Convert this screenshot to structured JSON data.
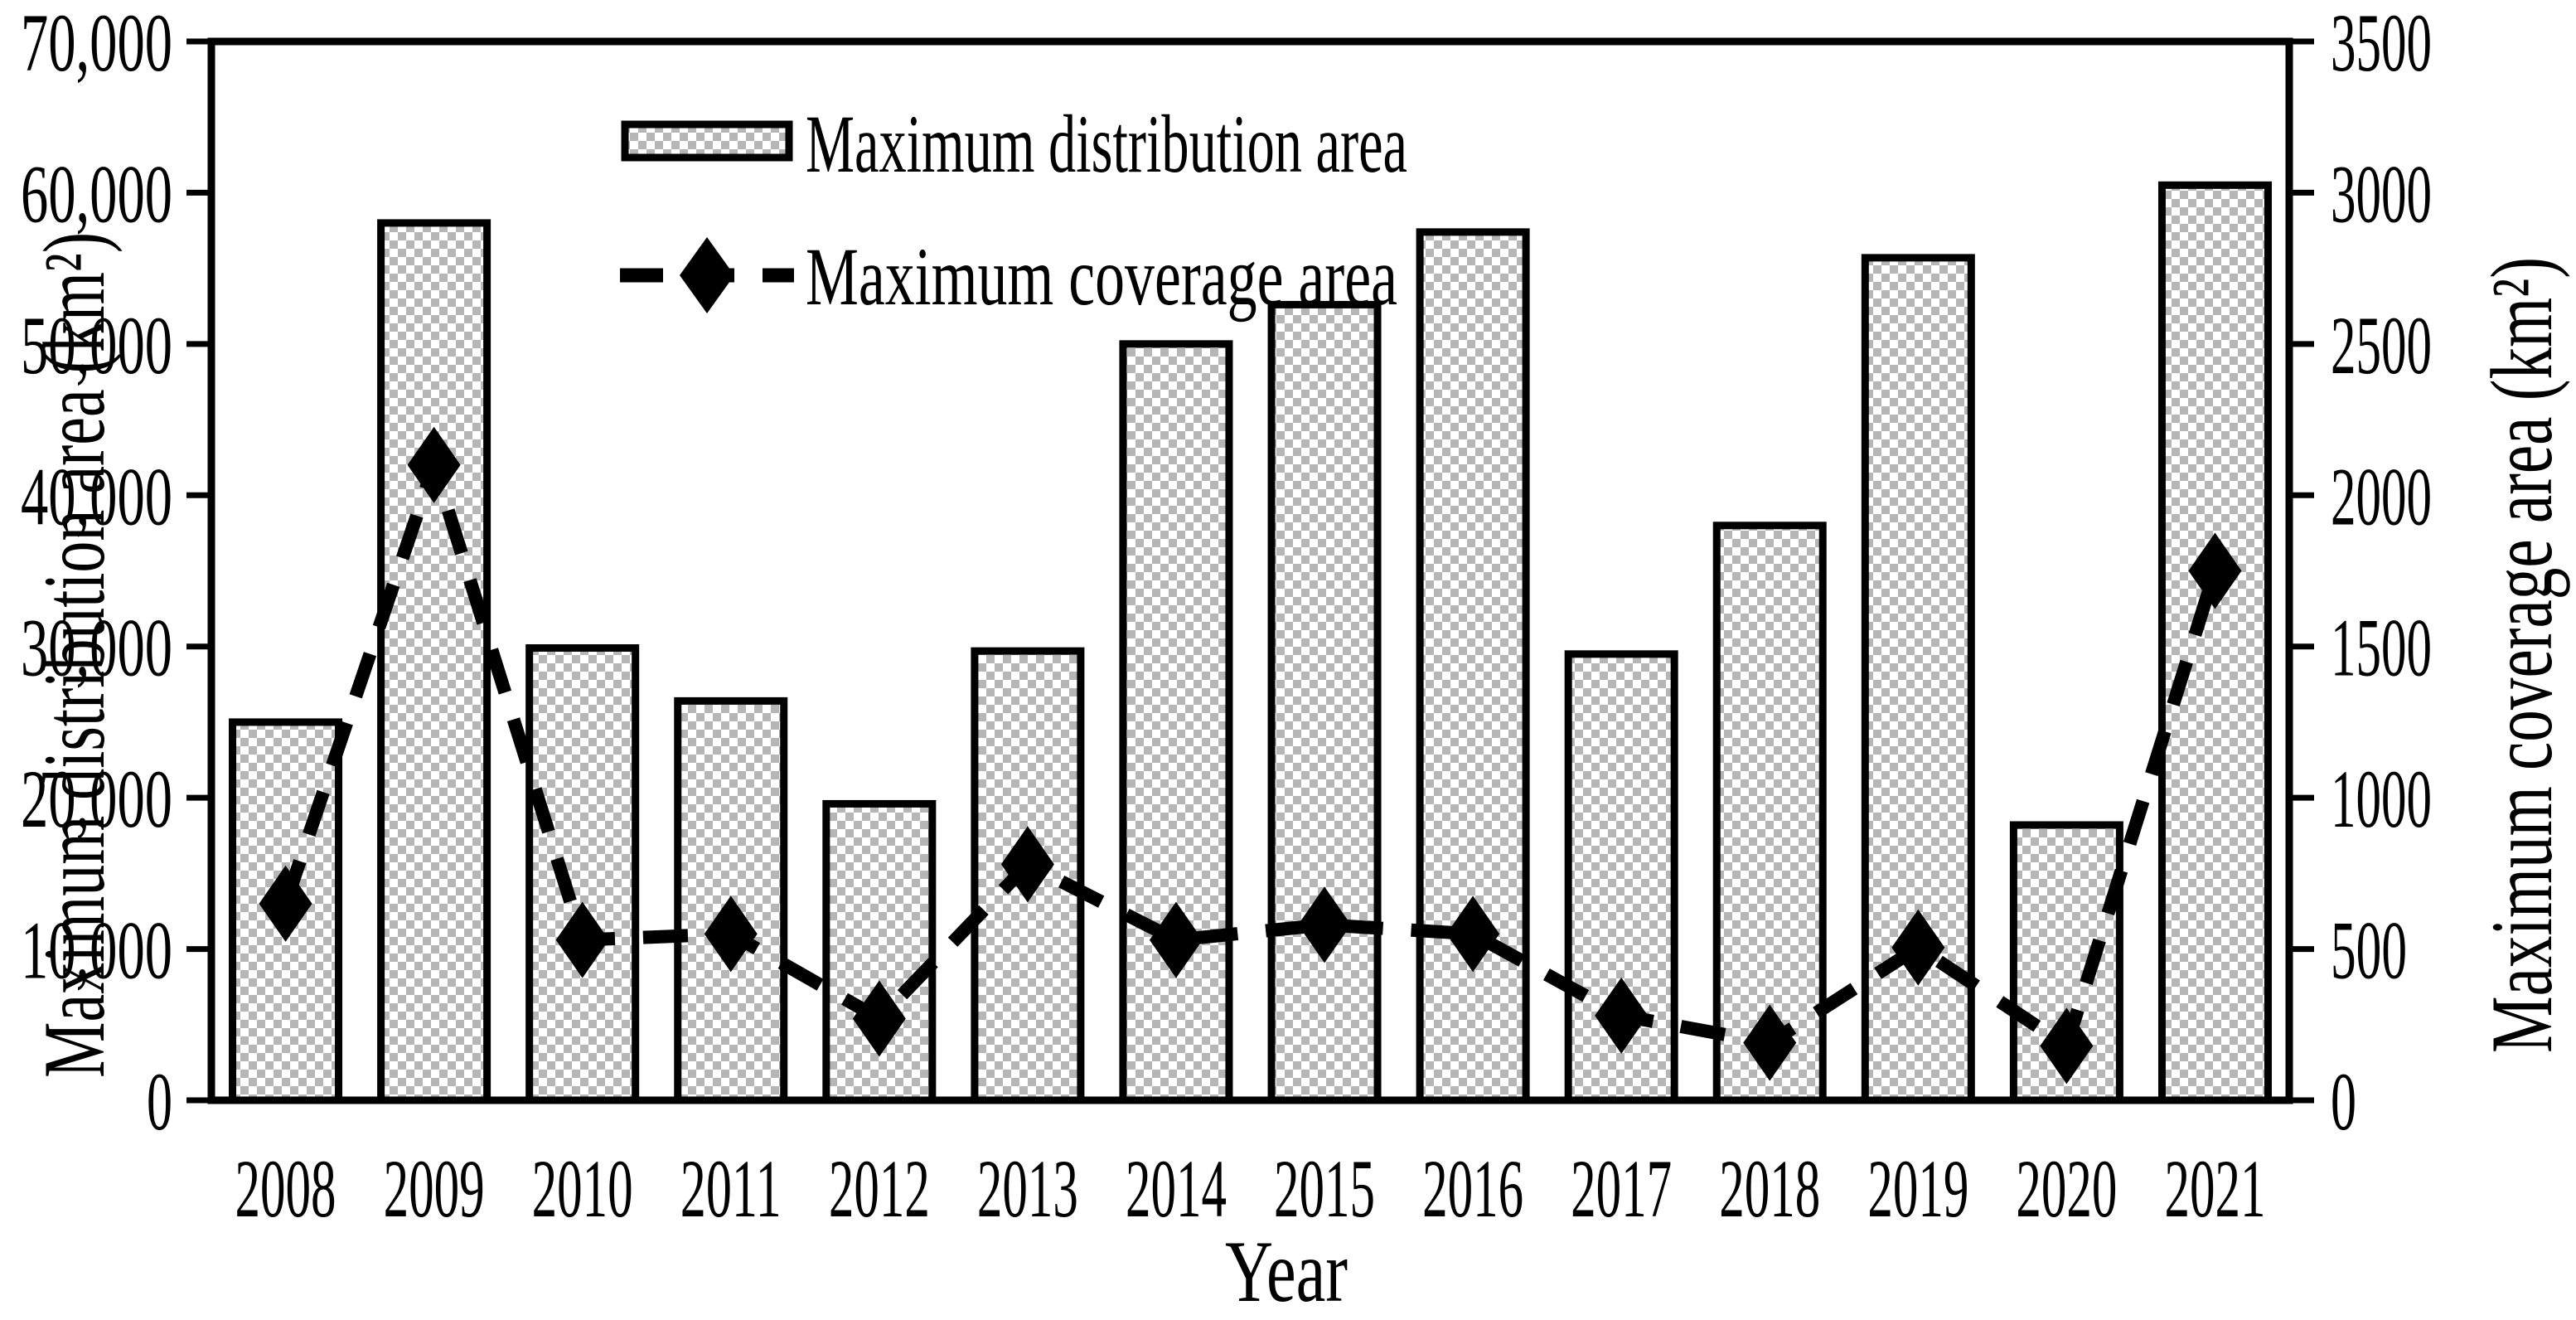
{
  "figure": {
    "background_color": "#ffffff",
    "ink_color": "#000000",
    "bar_fill_checker_color": "#b6b6b6"
  },
  "chart_data": {
    "type": "bar+line combo (dual y-axis)",
    "categories": [
      "2008",
      "2009",
      "2010",
      "2011",
      "2012",
      "2013",
      "2014",
      "2015",
      "2016",
      "2017",
      "2018",
      "2019",
      "2020",
      "2021"
    ],
    "series": [
      {
        "name": "Maximum distribution area",
        "type": "bar",
        "axis": "left",
        "style": "gray checker-hatched fill, black border",
        "values": [
          25000,
          58000,
          29900,
          26400,
          19600,
          29700,
          50000,
          52600,
          57400,
          29500,
          38000,
          55700,
          18200,
          60500
        ]
      },
      {
        "name": "Maximum coverage area",
        "type": "line",
        "axis": "right",
        "style": "thick black dashed line with filled diamond markers",
        "values": [
          650,
          2100,
          530,
          550,
          270,
          780,
          530,
          580,
          550,
          280,
          190,
          505,
          180,
          1750
        ]
      }
    ],
    "left_axis": {
      "label": "Maximum distribution area (km²)",
      "range": [
        0,
        70000
      ],
      "tick_step": 10000,
      "tick_labels": [
        "70,000",
        "60,000",
        "50,000",
        "40,000",
        "30,000",
        "20,000",
        "10,000",
        "0"
      ]
    },
    "right_axis": {
      "label": "Maximum coverage area (km²)",
      "range": [
        0,
        3500
      ],
      "tick_step": 500,
      "tick_labels": [
        "3500",
        "3000",
        "2500",
        "2000",
        "1500",
        "1000",
        "500",
        "0"
      ]
    },
    "x_axis": {
      "label": "Year"
    },
    "legend": {
      "position": "inside plot, upper left-center",
      "entries": [
        "Maximum distribution area",
        "Maximum coverage area"
      ]
    },
    "grid": "off"
  }
}
